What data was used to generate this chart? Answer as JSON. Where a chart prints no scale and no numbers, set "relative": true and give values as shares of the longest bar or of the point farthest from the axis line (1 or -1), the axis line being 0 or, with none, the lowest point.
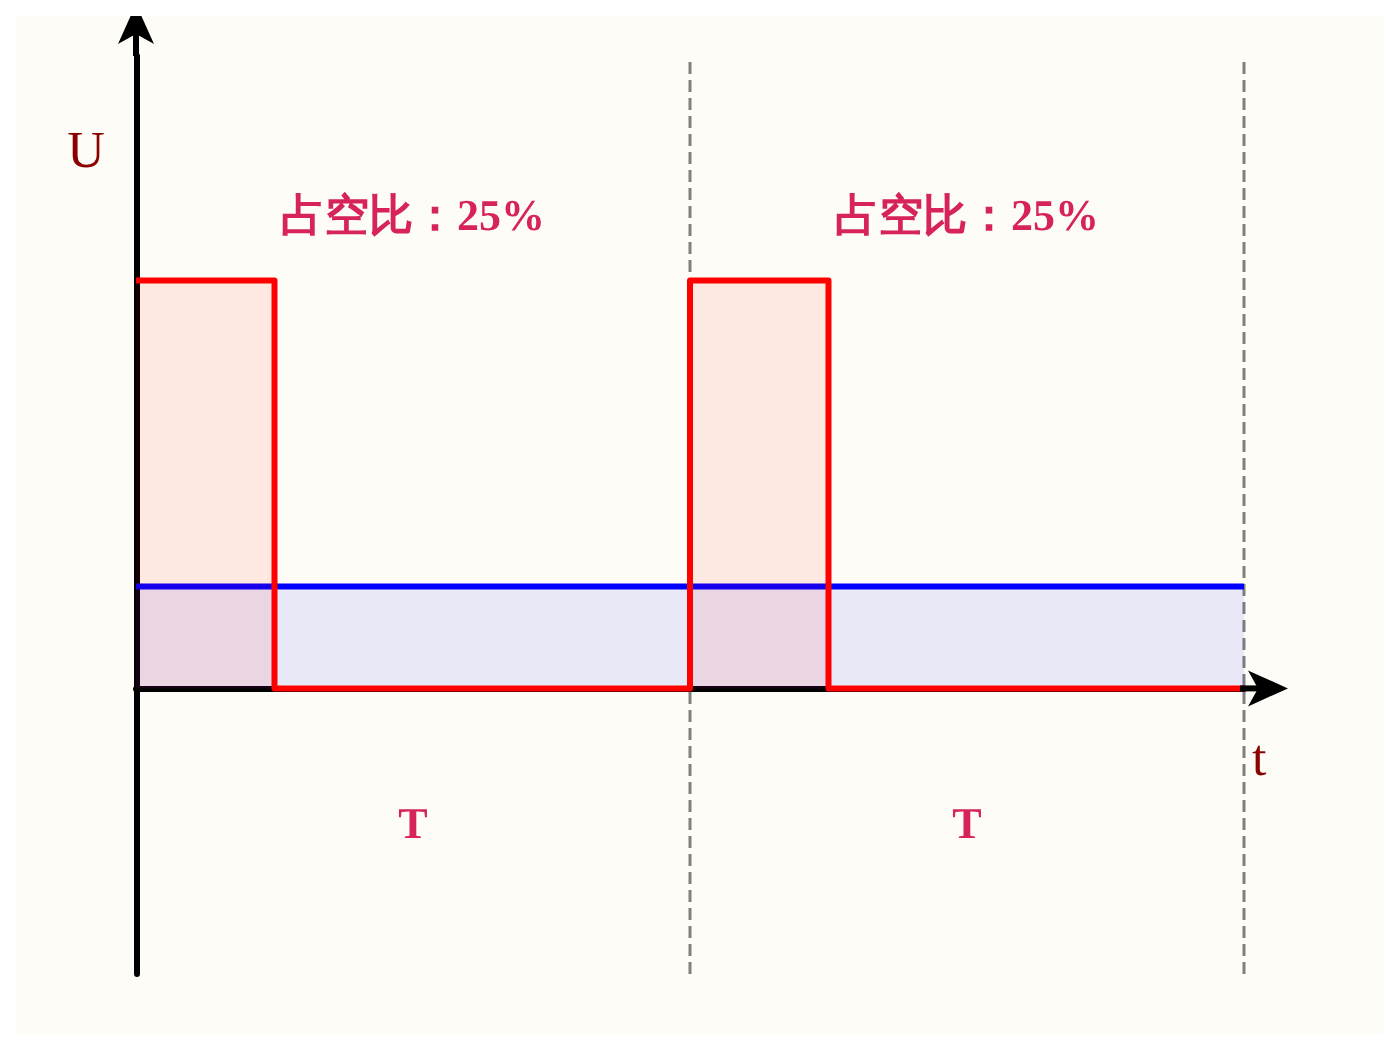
{
  "chart_data": {
    "type": "area",
    "relative": true,
    "xlabel": "t",
    "ylabel": "U",
    "categories": [
      null,
      null,
      null,
      null,
      null,
      null,
      null,
      null,
      null
    ],
    "series": [
      {
        "color": "#ff0000",
        "values": [
          1,
          0,
          0,
          0,
          1,
          0,
          0,
          0,
          0
        ]
      },
      {
        "color": "#0000ff",
        "values": [
          0.25,
          0.25,
          0.25,
          0.25,
          0.25,
          0.25,
          0.25,
          0.25,
          0.25
        ]
      }
    ],
    "annotations": [
      "占空比：25%",
      "占空比：25%",
      "T",
      "T"
    ],
    "grid": false,
    "marker": "none",
    "line_style": "solid"
  }
}
